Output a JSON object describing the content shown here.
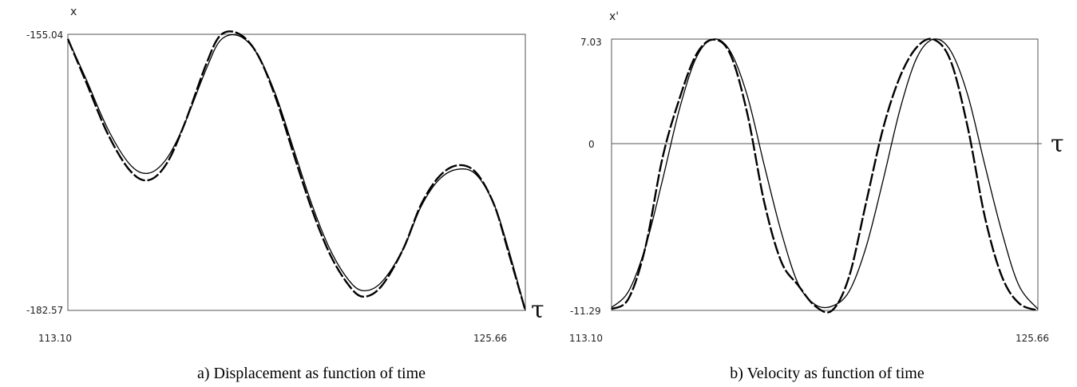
{
  "chart_data": [
    {
      "type": "line",
      "caption": "a) Displacement as function of time",
      "ylabel": "x",
      "xlabel": "τ",
      "xlim": [
        113.1,
        125.66
      ],
      "ylim": [
        -182.57,
        -155.04
      ],
      "x_tick_labels": [
        "113.10",
        "125.66"
      ],
      "y_tick_labels": [
        "-155.04",
        "-182.57"
      ],
      "grid": false,
      "series": [
        {
          "x": [
            113.1,
            113.6,
            114.2,
            114.8,
            115.3,
            115.8,
            116.3,
            116.9,
            117.3,
            117.8,
            118.3,
            118.8,
            119.3,
            119.8,
            120.3,
            120.8,
            121.2,
            121.7,
            122.3,
            122.8,
            123.3,
            123.8,
            124.3,
            124.8,
            125.2,
            125.66
          ],
          "y": [
            -155.5,
            -159.5,
            -164.5,
            -168.0,
            -168.9,
            -167.5,
            -164.0,
            -158.5,
            -155.6,
            -155.2,
            -157.0,
            -161.0,
            -166.5,
            -172.0,
            -176.5,
            -179.5,
            -180.6,
            -179.8,
            -176.5,
            -172.2,
            -169.5,
            -168.5,
            -169.0,
            -172.0,
            -176.5,
            -182.57
          ]
        },
        {
          "x": [
            113.1,
            113.6,
            114.2,
            114.8,
            115.3,
            115.8,
            116.3,
            116.9,
            117.3,
            117.8,
            118.3,
            118.8,
            119.3,
            119.8,
            120.3,
            120.8,
            121.2,
            121.7,
            122.3,
            122.8,
            123.3,
            123.8,
            124.3,
            124.8,
            125.2,
            125.66
          ],
          "y": [
            -155.5,
            -159.8,
            -165.0,
            -168.6,
            -169.6,
            -168.0,
            -164.0,
            -158.0,
            -155.1,
            -155.0,
            -157.0,
            -161.3,
            -167.0,
            -172.5,
            -177.0,
            -180.0,
            -181.2,
            -180.2,
            -176.5,
            -172.0,
            -169.2,
            -168.1,
            -168.8,
            -172.0,
            -176.8,
            -182.57
          ]
        }
      ]
    },
    {
      "type": "line",
      "caption": "b) Velocity as function of time",
      "ylabel": "x'",
      "xlabel": "τ",
      "xlim": [
        113.1,
        125.66
      ],
      "ylim": [
        -11.29,
        7.03
      ],
      "x_tick_labels": [
        "113.10",
        "125.66"
      ],
      "y_tick_labels": [
        "7.03",
        "0",
        "-11.29"
      ],
      "zero_line": true,
      "grid": false,
      "series": [
        {
          "x": [
            113.1,
            113.6,
            114.1,
            114.6,
            115.1,
            115.6,
            116.1,
            116.6,
            117.1,
            117.6,
            118.1,
            118.6,
            119.1,
            119.6,
            120.1,
            120.6,
            121.1,
            121.6,
            122.1,
            122.6,
            123.1,
            123.6,
            124.1,
            124.6,
            125.1,
            125.66
          ],
          "y": [
            -11.1,
            -10.0,
            -7.0,
            -2.5,
            2.3,
            5.8,
            7.03,
            6.2,
            3.2,
            -1.5,
            -6.0,
            -9.5,
            -10.9,
            -11.0,
            -10.0,
            -7.0,
            -2.5,
            2.3,
            5.8,
            7.03,
            6.2,
            3.2,
            -1.5,
            -6.0,
            -9.6,
            -11.2
          ]
        },
        {
          "x": [
            113.1,
            113.6,
            114.1,
            114.6,
            115.1,
            115.6,
            116.1,
            116.6,
            117.1,
            117.6,
            118.1,
            118.6,
            119.1,
            119.6,
            120.1,
            120.6,
            121.1,
            121.6,
            122.1,
            122.6,
            123.1,
            123.6,
            124.1,
            124.6,
            125.1,
            125.66
          ],
          "y": [
            -11.2,
            -10.5,
            -7.0,
            -1.0,
            3.0,
            6.0,
            7.0,
            6.0,
            2.0,
            -4.0,
            -8.0,
            -9.6,
            -11.0,
            -11.29,
            -9.0,
            -4.0,
            1.0,
            4.5,
            6.5,
            7.0,
            5.5,
            1.0,
            -5.0,
            -9.0,
            -10.8,
            -11.29
          ]
        }
      ]
    }
  ]
}
